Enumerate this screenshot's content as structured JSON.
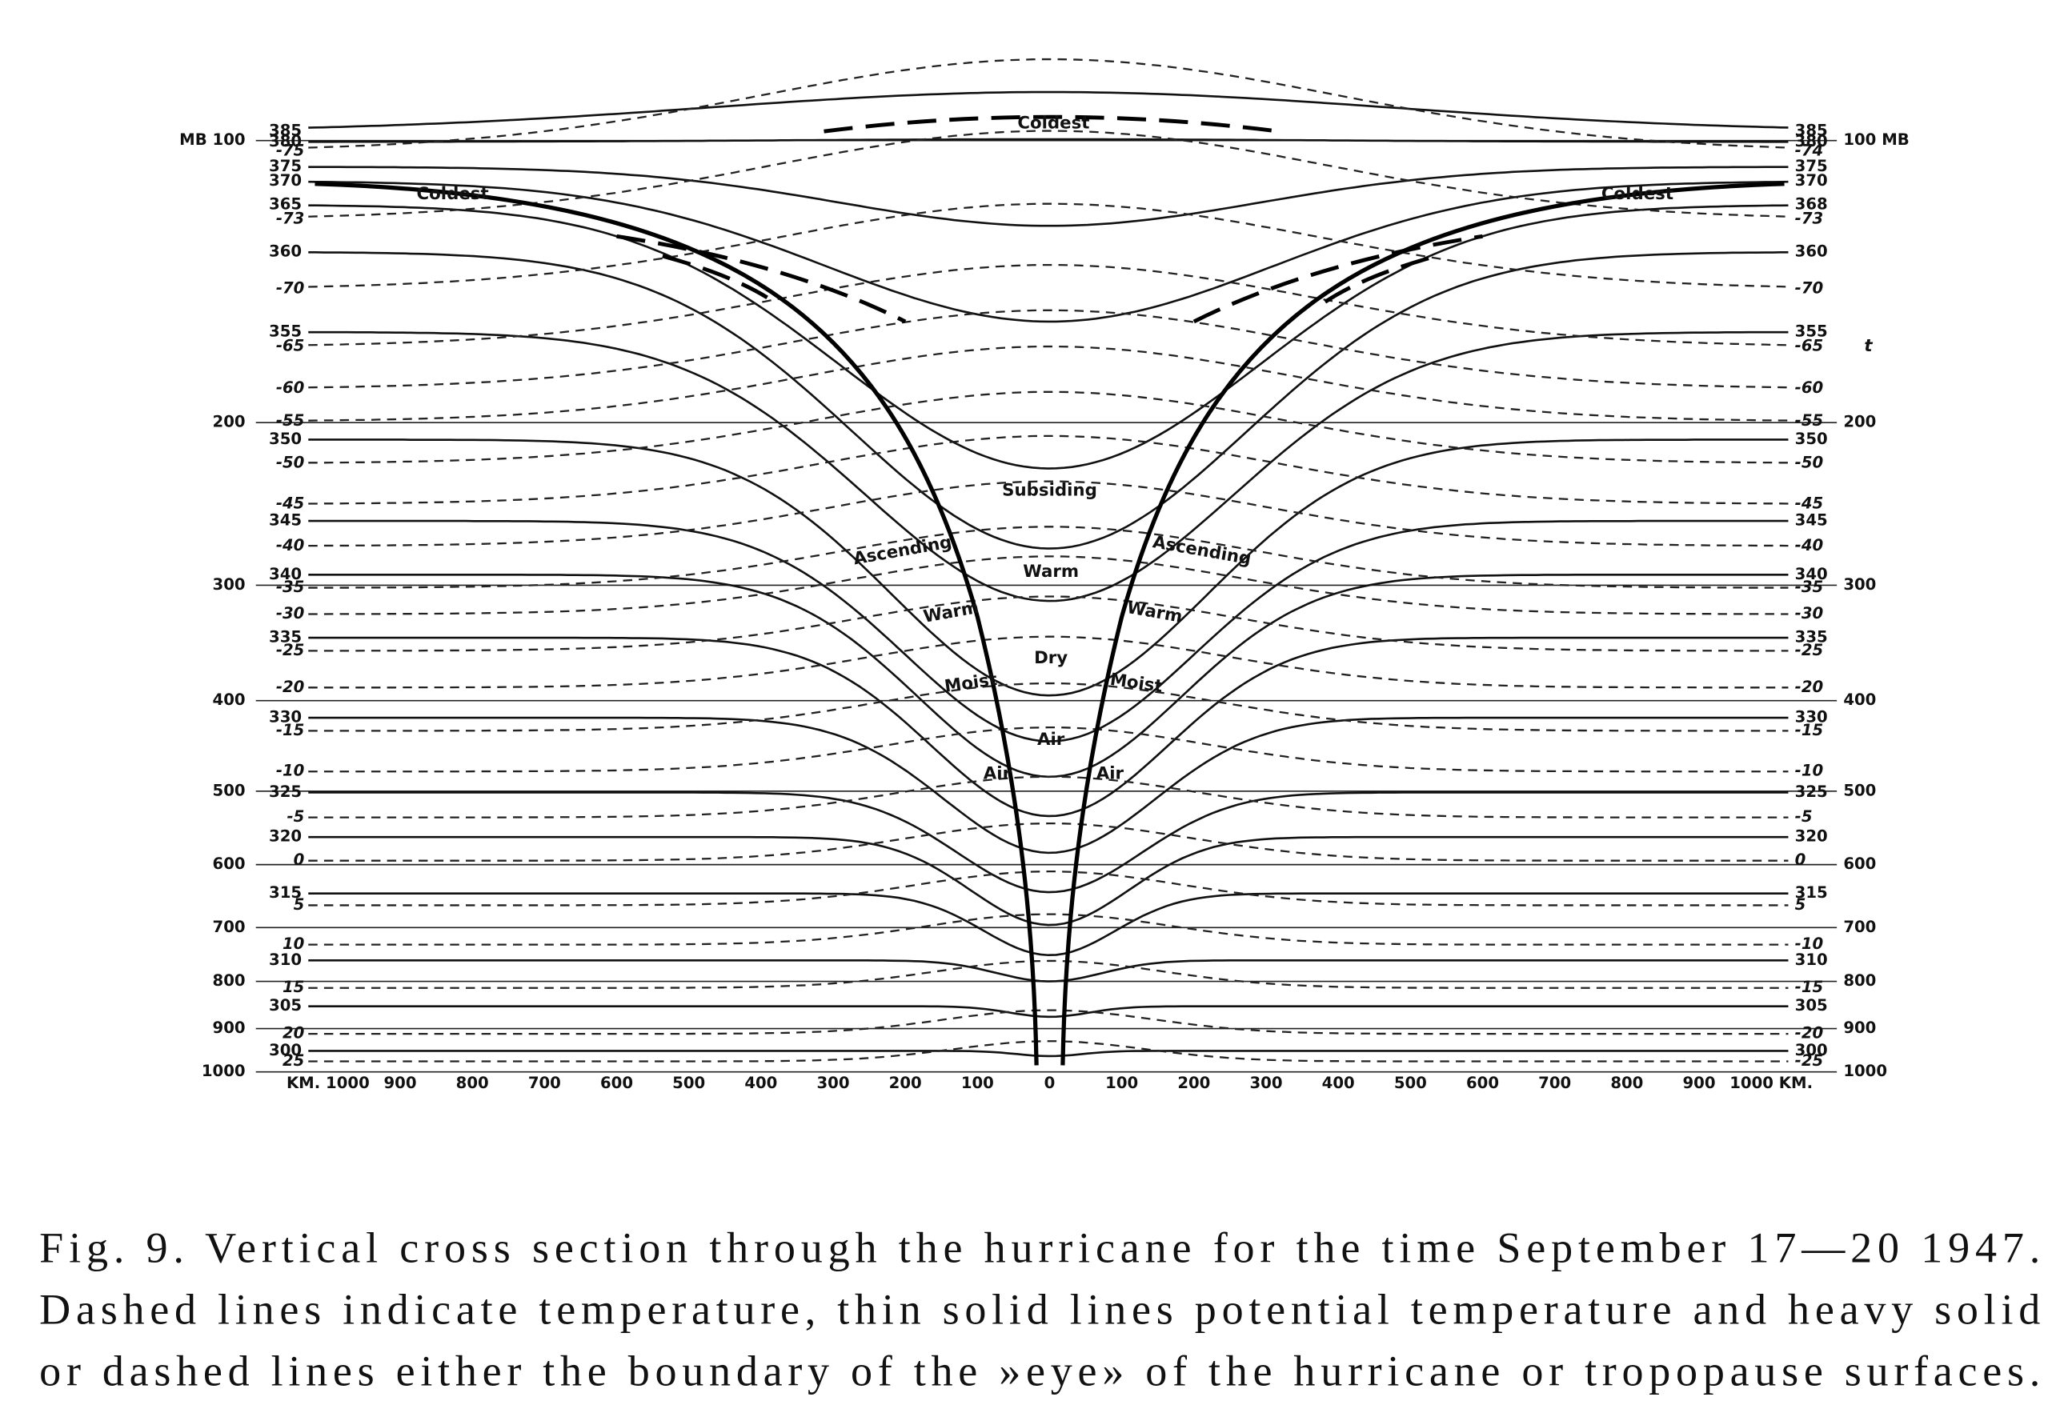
{
  "figure": {
    "pressure_left": [
      "MB 100",
      "200",
      "300",
      "400",
      "500",
      "600",
      "700",
      "800",
      "900",
      "1000"
    ],
    "pressure_right": [
      "100 MB",
      "200",
      "300",
      "400",
      "500",
      "600",
      "700",
      "800",
      "900",
      "1000"
    ],
    "x_labels": [
      "KM. 1000",
      "900",
      "800",
      "700",
      "600",
      "500",
      "400",
      "300",
      "200",
      "100",
      "0",
      "100",
      "200",
      "300",
      "400",
      "500",
      "600",
      "700",
      "800",
      "900",
      "1000 KM."
    ],
    "theta_left": [
      "385",
      "380",
      "375",
      "370",
      "365",
      "360",
      "355",
      "350",
      "345",
      "340",
      "335",
      "330",
      "325",
      "320",
      "315",
      "310",
      "305",
      "300"
    ],
    "theta_right": [
      "385",
      "380",
      "375",
      "370",
      "368",
      "360",
      "355",
      "350",
      "345",
      "340",
      "335",
      "330",
      "325",
      "320",
      "315",
      "310",
      "305",
      "300"
    ],
    "temp_left": [
      "-75",
      "-73",
      "-70",
      "-65",
      "-60",
      "-55",
      "-50",
      "-45",
      "-40",
      "-35",
      "-30",
      "-25",
      "-20",
      "-15",
      "-10",
      "-5",
      "0",
      "5",
      "10",
      "15",
      "20",
      "25"
    ],
    "temp_right": [
      "-74",
      "-73",
      "-70",
      "-65",
      "-60",
      "-55",
      "-50",
      "-45",
      "-40",
      "-35",
      "-30",
      "-25",
      "-20",
      "-15",
      "-10",
      "-5",
      "0",
      "5",
      "-10",
      "-15",
      "-20",
      "-25"
    ],
    "regions": [
      "Coldest",
      "Coldest",
      "Coldest",
      "Subsiding",
      "Ascending",
      "Ascending",
      "Warm",
      "Warm",
      "Warm",
      "Dry",
      "Moist",
      "Moist",
      "Air",
      "Air",
      "Air"
    ],
    "marker": "t"
  },
  "caption": [
    "Fig. 9. Vertical cross section through the hurricane for the time September 17—20 1947.",
    "Dashed lines indicate temperature, thin solid lines potential temperature and heavy solid",
    "or dashed lines either the boundary of the »eye» of the hurricane or tropopause surfaces."
  ]
}
